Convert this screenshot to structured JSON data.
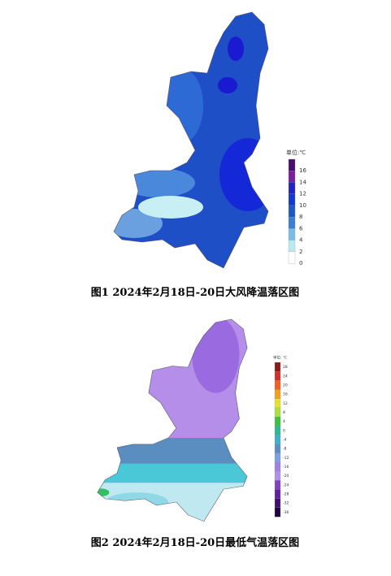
{
  "figures": [
    {
      "unit": "单位:℃",
      "ticks": [
        16,
        14,
        12,
        10,
        8,
        6,
        4,
        2,
        0
      ],
      "colors": [
        "#4a0e6e",
        "#7a1fa0",
        "#2222c8",
        "#1538d0",
        "#1e58c8",
        "#3a7fd6",
        "#78bde8",
        "#b8eaf2",
        "#ffffff"
      ],
      "caption": "图1 2024年2月18日-20日大风降温落区图"
    },
    {
      "unit": "单位: ℃",
      "ticks": [
        28,
        24,
        20,
        16,
        12,
        8,
        4,
        0,
        -4,
        -8,
        -12,
        -16,
        -20,
        -24,
        -28,
        -32,
        -36
      ],
      "colors": [
        "#8b1a1a",
        "#d0302a",
        "#f06020",
        "#f0a020",
        "#e8e030",
        "#a8e040",
        "#40c040",
        "#30b890",
        "#40b0c8",
        "#5a90c0",
        "#7aa0e0",
        "#a080e0",
        "#b090e8",
        "#8040c0",
        "#6020a0",
        "#401070",
        "#200040"
      ],
      "caption": "图2 2024年2月18日-20日最低气温落区图"
    }
  ]
}
